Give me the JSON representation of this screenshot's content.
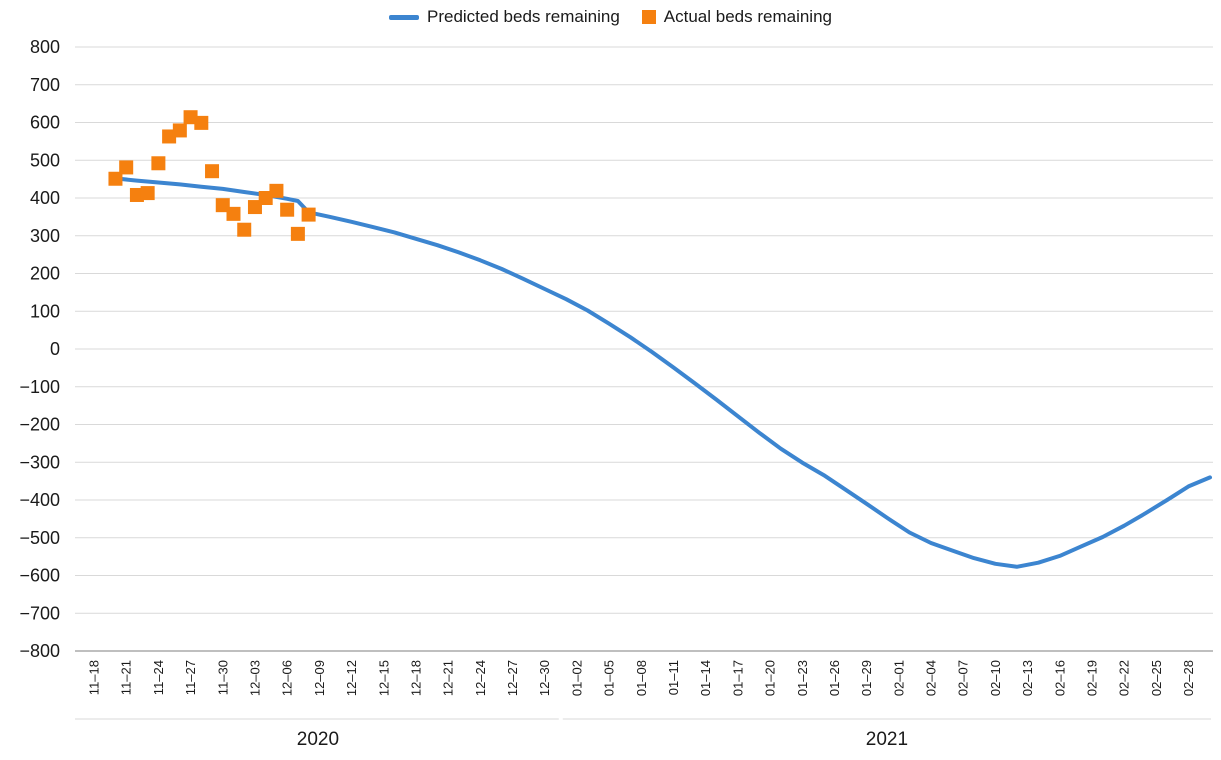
{
  "chart_data": {
    "type": "line",
    "colors": {
      "predicted": "#3c85d0",
      "actual": "#f5800f",
      "grid": "#d9d9d9",
      "axis": "#7f7f7f"
    },
    "ylim": [
      -800,
      800
    ],
    "yticks": [
      800,
      700,
      600,
      500,
      400,
      300,
      200,
      100,
      0,
      -100,
      -200,
      -300,
      -400,
      -500,
      -600,
      -700,
      -800
    ],
    "ytick_labels": [
      "800",
      "700",
      "600",
      "500",
      "400",
      "300",
      "200",
      "100",
      "0",
      "−100",
      "−200",
      "−300",
      "−400",
      "−500",
      "−600",
      "−700",
      "−800"
    ],
    "grid": "horizontal",
    "legend_position": "top-center",
    "x_dates": [
      "11-18",
      "11-19",
      "11-20",
      "11-21",
      "11-22",
      "11-23",
      "11-24",
      "11-25",
      "11-26",
      "11-27",
      "11-28",
      "11-29",
      "11-30",
      "12-01",
      "12-02",
      "12-03",
      "12-04",
      "12-05",
      "12-06",
      "12-07",
      "12-08",
      "12-09",
      "12-10",
      "12-11",
      "12-12",
      "12-13",
      "12-14",
      "12-15",
      "12-16",
      "12-17",
      "12-18",
      "12-19",
      "12-20",
      "12-21",
      "12-22",
      "12-23",
      "12-24",
      "12-25",
      "12-26",
      "12-27",
      "12-28",
      "12-29",
      "12-30",
      "12-31",
      "01-01",
      "01-02",
      "01-03",
      "01-04",
      "01-05",
      "01-06",
      "01-07",
      "01-08",
      "01-09",
      "01-10",
      "01-11",
      "01-12",
      "01-13",
      "01-14",
      "01-15",
      "01-16",
      "01-17",
      "01-18",
      "01-19",
      "01-20",
      "01-21",
      "01-22",
      "01-23",
      "01-24",
      "01-25",
      "01-26",
      "01-27",
      "01-28",
      "01-29",
      "01-30",
      "01-31",
      "02-01",
      "02-02",
      "02-03",
      "02-04",
      "02-05",
      "02-06",
      "02-07",
      "02-08",
      "02-09",
      "02-10",
      "02-11",
      "02-12",
      "02-13",
      "02-14",
      "02-15",
      "02-16",
      "02-17",
      "02-18",
      "02-19",
      "02-20",
      "02-21",
      "02-22",
      "02-23",
      "02-24",
      "02-25",
      "02-26",
      "02-27",
      "02-28",
      "03-01",
      "03-02"
    ],
    "x_tick_labels": [
      "11–18",
      "11–21",
      "11–24",
      "11–27",
      "11–30",
      "12–03",
      "12–06",
      "12–09",
      "12–12",
      "12–15",
      "12–18",
      "12–21",
      "12–24",
      "12–27",
      "12–30",
      "01–02",
      "01–05",
      "01–08",
      "01–11",
      "01–14",
      "01–17",
      "01–20",
      "01–23",
      "01–26",
      "01–29",
      "02–01",
      "02–04",
      "02–07",
      "02–10",
      "02–13",
      "02–16",
      "02–19",
      "02–22",
      "02–25",
      "02–28"
    ],
    "x_groups": [
      {
        "label": "2020",
        "start": "11-18",
        "end": "12-31"
      },
      {
        "label": "2021",
        "start": "01-01",
        "end": "03-02"
      }
    ],
    "series": [
      {
        "name": "Predicted beds remaining",
        "kind": "line",
        "points": [
          [
            "11-20",
            452
          ],
          [
            "11-22",
            446
          ],
          [
            "11-24",
            441
          ],
          [
            "11-26",
            436
          ],
          [
            "11-28",
            430
          ],
          [
            "11-30",
            424
          ],
          [
            "12-02",
            416
          ],
          [
            "12-04",
            408
          ],
          [
            "12-06",
            398
          ],
          [
            "12-07",
            392
          ],
          [
            "12-08",
            362
          ],
          [
            "12-10",
            350
          ],
          [
            "12-12",
            337
          ],
          [
            "12-14",
            323
          ],
          [
            "12-16",
            309
          ],
          [
            "12-18",
            292
          ],
          [
            "12-20",
            275
          ],
          [
            "12-22",
            256
          ],
          [
            "12-24",
            235
          ],
          [
            "12-26",
            212
          ],
          [
            "12-28",
            186
          ],
          [
            "12-30",
            159
          ],
          [
            "01-01",
            132
          ],
          [
            "01-03",
            102
          ],
          [
            "01-05",
            67
          ],
          [
            "01-07",
            31
          ],
          [
            "01-09",
            -8
          ],
          [
            "01-11",
            -49
          ],
          [
            "01-13",
            -91
          ],
          [
            "01-15",
            -134
          ],
          [
            "01-17",
            -178
          ],
          [
            "01-19",
            -222
          ],
          [
            "01-21",
            -264
          ],
          [
            "01-23",
            -301
          ],
          [
            "01-25",
            -334
          ],
          [
            "01-27",
            -372
          ],
          [
            "01-29",
            -410
          ],
          [
            "01-31",
            -449
          ],
          [
            "02-02",
            -486
          ],
          [
            "02-04",
            -514
          ],
          [
            "02-06",
            -534
          ],
          [
            "02-08",
            -554
          ],
          [
            "02-10",
            -569
          ],
          [
            "02-12",
            -577
          ],
          [
            "02-14",
            -566
          ],
          [
            "02-16",
            -548
          ],
          [
            "02-18",
            -523
          ],
          [
            "02-20",
            -498
          ],
          [
            "02-22",
            -468
          ],
          [
            "02-24",
            -435
          ],
          [
            "02-26",
            -400
          ],
          [
            "02-28",
            -364
          ],
          [
            "03-02",
            -340
          ]
        ]
      },
      {
        "name": "Actual beds remaining",
        "kind": "scatter",
        "points": [
          [
            "11-20",
            451
          ],
          [
            "11-21",
            481
          ],
          [
            "11-22",
            408
          ],
          [
            "11-23",
            413
          ],
          [
            "11-24",
            492
          ],
          [
            "11-25",
            563
          ],
          [
            "11-26",
            579
          ],
          [
            "11-27",
            614
          ],
          [
            "11-28",
            599
          ],
          [
            "11-29",
            471
          ],
          [
            "11-30",
            381
          ],
          [
            "12-01",
            358
          ],
          [
            "12-02",
            316
          ],
          [
            "12-03",
            376
          ],
          [
            "12-04",
            400
          ],
          [
            "12-05",
            419
          ],
          [
            "12-06",
            369
          ],
          [
            "12-07",
            305
          ],
          [
            "12-08",
            356
          ]
        ]
      }
    ]
  }
}
